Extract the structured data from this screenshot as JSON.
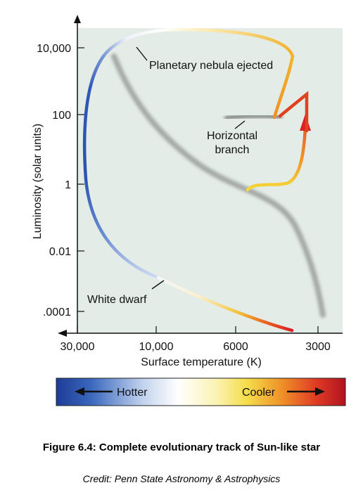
{
  "diagram": {
    "y_axis": {
      "label": "Luminosity (solar units)",
      "ticks": [
        "10,000",
        "100",
        "1",
        "0.01",
        ".0001"
      ]
    },
    "x_axis": {
      "label": "Surface temperature (K)",
      "ticks": [
        "30,000",
        "10,000",
        "6000",
        "3000"
      ]
    },
    "annotations": {
      "planetary_nebula": "Planetary nebula ejected",
      "horizontal_branch_1": "Horizontal",
      "horizontal_branch_2": "branch",
      "white_dwarf": "White dwarf"
    },
    "colorbar": {
      "hotter": "Hotter",
      "cooler": "Cooler"
    },
    "colors": {
      "plot_background": "#e3ece6",
      "main_sequence": "#a6aaa7",
      "hot_blue": "#2047a8",
      "cool_red": "#d81a22"
    }
  },
  "caption": "Figure 6.4: Complete evolutionary track of Sun-like star",
  "credit": "Credit: Penn State Astronomy & Astrophysics"
}
